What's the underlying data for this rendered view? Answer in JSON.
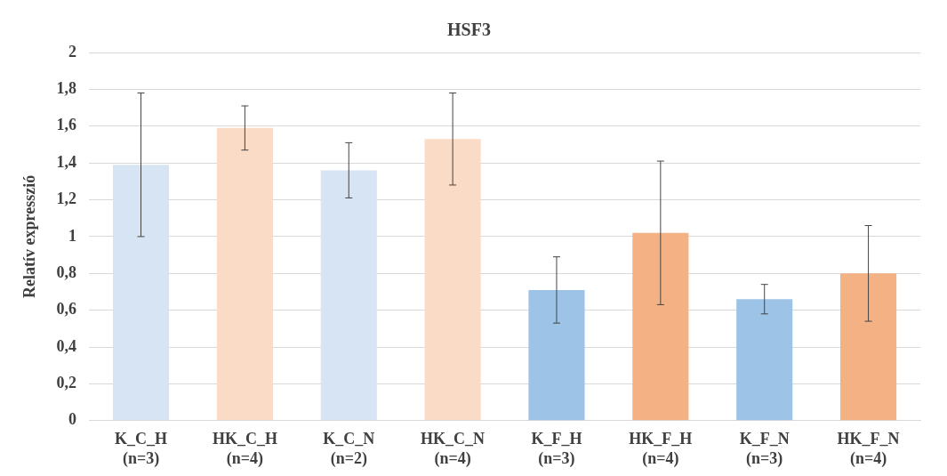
{
  "chart_data": {
    "type": "bar",
    "title": "HSF3",
    "ylabel": "Relatív expresszió",
    "categories": [
      "K_C_H (n=3)",
      "HK_C_H (n=4)",
      "K_C_N (n=2)",
      "HK_C_N (n=4)",
      "K_F_H (n=3)",
      "HK_F_H (n=4)",
      "K_F_N (n=3)",
      "HK_F_N (n=4)"
    ],
    "values": [
      1.39,
      1.59,
      1.36,
      1.53,
      0.71,
      1.02,
      0.66,
      0.8
    ],
    "errors": [
      0.39,
      0.12,
      0.15,
      0.25,
      0.18,
      0.39,
      0.08,
      0.26
    ],
    "colors": [
      "#d6e4f3",
      "#fadbc6",
      "#d6e4f3",
      "#fadbc6",
      "#9dc3e6",
      "#f4b183",
      "#9dc3e6",
      "#f4b183"
    ],
    "ylim": [
      0,
      2
    ],
    "yticks": [
      0,
      {
        "value": 0.2,
        "label": "0,2"
      },
      {
        "value": 0.4,
        "label": "0,4"
      },
      {
        "value": 0.6,
        "label": "0,6"
      },
      {
        "value": 0.8,
        "label": "0,8"
      },
      1,
      {
        "value": 1.2,
        "label": "1,2"
      },
      {
        "value": 1.4,
        "label": "1,4"
      },
      {
        "value": 1.6,
        "label": "1,6"
      },
      {
        "value": 1.8,
        "label": "1,8"
      },
      2
    ],
    "grid": "y",
    "legend": false
  }
}
